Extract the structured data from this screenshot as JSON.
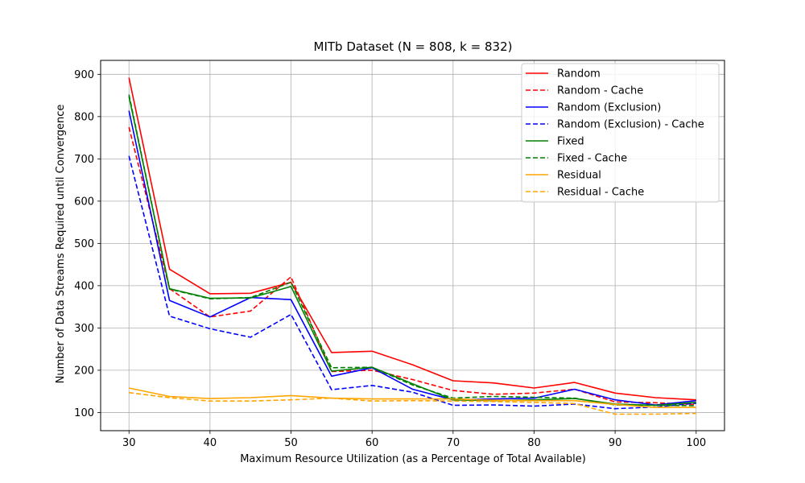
{
  "chart_data": {
    "type": "line",
    "title": "MITb Dataset (N = 808, k = 832)",
    "xlabel": "Maximum Resource Utilization (as a Percentage of Total Available)",
    "ylabel": "Number of Data Streams Required until Convergence",
    "x": [
      30,
      35,
      40,
      45,
      50,
      55,
      60,
      65,
      70,
      75,
      80,
      85,
      90,
      95,
      100
    ],
    "xlim": [
      26.5,
      103.5
    ],
    "ylim": [
      57,
      933
    ],
    "xticks": [
      30,
      40,
      50,
      60,
      70,
      80,
      90,
      100
    ],
    "yticks": [
      100,
      200,
      300,
      400,
      500,
      600,
      700,
      800,
      900
    ],
    "grid": true,
    "legend_position": "top-right",
    "series": [
      {
        "name": "Random",
        "color": "#ff0000",
        "dash": "solid",
        "values": [
          892,
          439,
          381,
          382,
          408,
          242,
          245,
          213,
          175,
          170,
          158,
          171,
          146,
          135,
          130
        ]
      },
      {
        "name": "Random - Cache",
        "color": "#ff0000",
        "dash": "dashed",
        "values": [
          775,
          393,
          326,
          340,
          421,
          197,
          200,
          178,
          152,
          143,
          146,
          155,
          125,
          123,
          119
        ]
      },
      {
        "name": "Random (Exclusion)",
        "color": "#0000ff",
        "dash": "solid",
        "values": [
          814,
          365,
          326,
          372,
          367,
          186,
          206,
          155,
          130,
          132,
          134,
          155,
          130,
          118,
          128
        ]
      },
      {
        "name": "Random (Exclusion) - Cache",
        "color": "#0000ff",
        "dash": "dashed",
        "values": [
          707,
          328,
          298,
          278,
          332,
          154,
          164,
          148,
          117,
          118,
          115,
          120,
          109,
          113,
          122
        ]
      },
      {
        "name": "Fixed",
        "color": "#008000",
        "dash": "solid",
        "values": [
          848,
          393,
          370,
          371,
          398,
          198,
          207,
          168,
          130,
          128,
          130,
          133,
          120,
          117,
          124
        ]
      },
      {
        "name": "Fixed - Cache",
        "color": "#008000",
        "dash": "dashed",
        "values": [
          852,
          392,
          369,
          372,
          408,
          206,
          207,
          165,
          134,
          138,
          136,
          134,
          118,
          117,
          116
        ]
      },
      {
        "name": "Residual",
        "color": "#ffa500",
        "dash": "solid",
        "values": [
          158,
          138,
          133,
          135,
          140,
          134,
          132,
          132,
          132,
          129,
          128,
          128,
          119,
          112,
          112
        ]
      },
      {
        "name": "Residual - Cache",
        "color": "#ffa500",
        "dash": "dashed",
        "values": [
          147,
          135,
          127,
          127,
          130,
          134,
          127,
          128,
          127,
          126,
          124,
          121,
          96,
          96,
          98
        ]
      }
    ]
  }
}
